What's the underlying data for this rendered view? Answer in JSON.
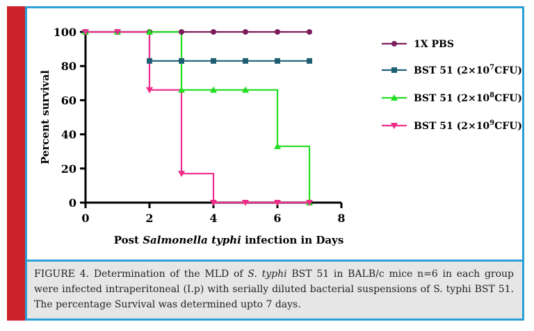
{
  "chart_data": {
    "type": "line",
    "step": true,
    "xlabel": {
      "before": "Post ",
      "italic": "Salmonella typhi",
      "after": " infection in Days"
    },
    "ylabel": "Percent survival",
    "xlim": [
      0,
      8
    ],
    "ylim": [
      0,
      100
    ],
    "xticks": [
      0,
      2,
      4,
      6,
      8
    ],
    "yticks": [
      0,
      20,
      40,
      60,
      80,
      100
    ],
    "grid": false,
    "legend_position": "right",
    "series": [
      {
        "name": "1X PBS",
        "label_main": "1X PBS",
        "label_sup": "",
        "label_tail": "",
        "color": "#7b1d5a",
        "marker": "circle",
        "x": [
          0,
          1,
          2,
          3,
          4,
          5,
          6,
          7
        ],
        "y": [
          100,
          100,
          100,
          100,
          100,
          100,
          100,
          100
        ]
      },
      {
        "name": "BST 51 (2×10^7CFU)",
        "label_main": "BST 51 (2×10",
        "label_sup": "7",
        "label_tail": "CFU)",
        "color": "#1f5f73",
        "marker": "square",
        "x": [
          0,
          1,
          2,
          3,
          4,
          5,
          6,
          7
        ],
        "y": [
          100,
          100,
          83,
          83,
          83,
          83,
          83,
          83
        ]
      },
      {
        "name": "BST 51 (2×10^8CFU)",
        "label_main": "BST 51 (2×10",
        "label_sup": "8",
        "label_tail": "CFU)",
        "color": "#22dd22",
        "marker": "triangle-up",
        "x": [
          0,
          1,
          2,
          3,
          4,
          5,
          6,
          7
        ],
        "y": [
          100,
          100,
          100,
          66,
          66,
          66,
          33,
          0
        ]
      },
      {
        "name": "BST 51 (2×10^9CFU)",
        "label_main": "BST 51 (2×10",
        "label_sup": "9",
        "label_tail": "CFU)",
        "color": "#ee2d8a",
        "marker": "triangle-down",
        "x": [
          0,
          1,
          2,
          3,
          4,
          5,
          6,
          7
        ],
        "y": [
          100,
          100,
          66,
          17,
          0,
          0,
          0,
          0
        ]
      }
    ]
  },
  "caption": {
    "lead": "FIGURE 4. Determination of the MLD of ",
    "italic": "S. typhi",
    "rest": " BST 51 in BALB/c mice n=6 in each group were infected intraperitoneal (I.p) with serially diluted bacterial suspensions of S. typhi BST 51. The percentage Survival was determined upto 7 days."
  },
  "colors": {
    "accent_border": "#2a9fd6",
    "side_bar": "#cc2229",
    "caption_bg": "#e6e6e6"
  }
}
